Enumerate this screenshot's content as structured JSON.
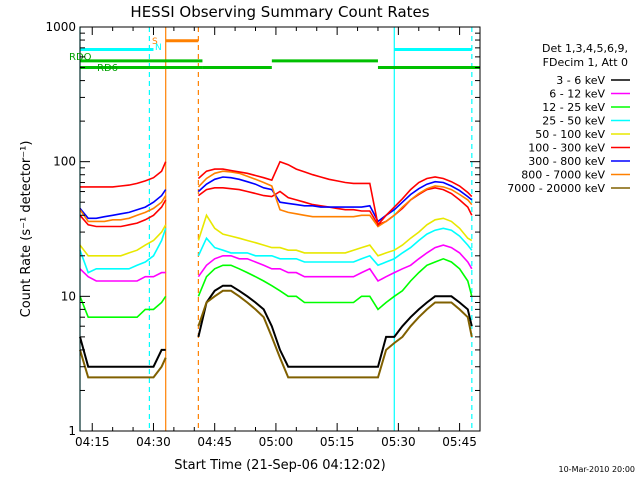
{
  "chart_data": {
    "type": "line",
    "title": "HESSI Observing Summary Count Rates",
    "xlabel": "Start Time (21-Sep-06 04:12:02)",
    "ylabel": "Count Rate (s⁻¹ detector⁻¹)",
    "y_scale": "log",
    "ylim": [
      1,
      1000
    ],
    "xlim": [
      "04:12",
      "05:50"
    ],
    "x_ticks": [
      "04:15",
      "04:30",
      "04:45",
      "05:00",
      "05:15",
      "05:30",
      "05:45"
    ],
    "y_ticks": [
      "1",
      "10",
      "100",
      "1000"
    ],
    "grid": false,
    "legend_position": "right",
    "legend_header": [
      "Det 1,3,4,5,6,9,",
      "FDecim 1, Att 0"
    ],
    "footer_date": "10-Mar-2010 20:00",
    "flag_labels": {
      "rd0": "RDO",
      "rd6": "RD6",
      "s": "S",
      "n": "N"
    },
    "flags": [
      {
        "label": "RDO",
        "color": "#00c000",
        "level": 560,
        "segments": [
          [
            "04:12",
            "04:42"
          ],
          [
            "04:59",
            "05:25"
          ]
        ]
      },
      {
        "label": "RD6",
        "color": "#00c000",
        "level": 500,
        "segments": [
          [
            "04:12",
            "04:42"
          ],
          [
            "04:42",
            "04:59"
          ],
          [
            "05:25",
            "05:50"
          ]
        ]
      },
      {
        "label": "",
        "color": "#00ffff",
        "level": 680,
        "segments": [
          [
            "04:12",
            "04:30"
          ],
          [
            "05:29",
            "05:48"
          ]
        ]
      },
      {
        "label": "S",
        "color": "#ff8000",
        "level": 790,
        "segments": [
          [
            "04:33",
            "04:41"
          ]
        ]
      }
    ],
    "vertical_lines": [
      {
        "time": "04:12",
        "color": "#00ffff",
        "style": "solid"
      },
      {
        "time": "04:29",
        "color": "#00ffff",
        "style": "dashed"
      },
      {
        "time": "04:33",
        "color": "#ff8000",
        "style": "solid"
      },
      {
        "time": "04:41",
        "color": "#ff8000",
        "style": "dashed"
      },
      {
        "time": "05:29",
        "color": "#00ffff",
        "style": "solid"
      },
      {
        "time": "05:48",
        "color": "#00ffff",
        "style": "dashed"
      }
    ],
    "times": [
      "04:12",
      "04:14",
      "04:16",
      "04:18",
      "04:20",
      "04:22",
      "04:24",
      "04:26",
      "04:28",
      "04:30",
      "04:32",
      "04:33",
      "04:41",
      "04:43",
      "04:45",
      "04:47",
      "04:49",
      "04:51",
      "04:53",
      "04:55",
      "04:57",
      "04:59",
      "05:01",
      "05:03",
      "05:05",
      "05:07",
      "05:09",
      "05:11",
      "05:13",
      "05:15",
      "05:17",
      "05:19",
      "05:21",
      "05:23",
      "05:25",
      "05:27",
      "05:29",
      "05:31",
      "05:33",
      "05:35",
      "05:37",
      "05:39",
      "05:41",
      "05:43",
      "05:45",
      "05:47",
      "05:48"
    ],
    "series": [
      {
        "name": "3 - 6 keV",
        "color": "#000000",
        "values": [
          5,
          3,
          3,
          3,
          3,
          3,
          3,
          3,
          3,
          3,
          4,
          4,
          5,
          9,
          11,
          12,
          12,
          11,
          10,
          9,
          8,
          6,
          4,
          3,
          3,
          3,
          3,
          3,
          3,
          3,
          3,
          3,
          3,
          3,
          3,
          5,
          5,
          6,
          7,
          8,
          9,
          10,
          10,
          10,
          9,
          8,
          6
        ]
      },
      {
        "name": "6 - 12 keV",
        "color": "#ff00ff",
        "values": [
          16,
          14,
          13,
          13,
          13,
          13,
          13,
          13,
          14,
          14,
          15,
          15,
          14,
          17,
          19,
          20,
          20,
          19,
          19,
          18,
          17,
          16,
          16,
          15,
          15,
          14,
          14,
          14,
          14,
          14,
          14,
          14,
          15,
          16,
          13,
          14,
          15,
          16,
          17,
          19,
          21,
          23,
          24,
          23,
          21,
          18,
          16
        ]
      },
      {
        "name": "12 - 25 keV",
        "color": "#00ff00",
        "values": [
          10,
          7,
          7,
          7,
          7,
          7,
          7,
          7,
          8,
          8,
          9,
          10,
          10,
          14,
          16,
          17,
          17,
          16,
          15,
          14,
          13,
          12,
          11,
          10,
          10,
          9,
          9,
          9,
          9,
          9,
          9,
          9,
          10,
          10,
          8,
          9,
          10,
          11,
          13,
          15,
          17,
          18,
          19,
          18,
          16,
          13,
          10
        ]
      },
      {
        "name": "25 - 50 keV",
        "color": "#00ffff",
        "values": [
          22,
          15,
          16,
          16,
          16,
          16,
          16,
          17,
          18,
          20,
          26,
          32,
          20,
          27,
          23,
          22,
          21,
          21,
          21,
          20,
          20,
          20,
          19,
          19,
          19,
          18,
          18,
          18,
          18,
          18,
          18,
          18,
          19,
          20,
          17,
          18,
          19,
          21,
          23,
          26,
          29,
          31,
          32,
          31,
          28,
          24,
          22
        ]
      },
      {
        "name": "50 - 100 keV",
        "color": "#e8e800",
        "values": [
          24,
          20,
          20,
          20,
          20,
          20,
          21,
          22,
          24,
          26,
          30,
          34,
          26,
          40,
          32,
          29,
          28,
          27,
          26,
          25,
          24,
          23,
          23,
          22,
          22,
          21,
          21,
          21,
          21,
          21,
          21,
          22,
          23,
          24,
          20,
          21,
          22,
          24,
          27,
          30,
          34,
          37,
          38,
          36,
          32,
          27,
          26
        ]
      },
      {
        "name": "100 - 300 keV",
        "color": "#ff0000",
        "values": [
          40,
          34,
          33,
          33,
          33,
          33,
          34,
          35,
          37,
          40,
          46,
          52,
          56,
          62,
          64,
          64,
          63,
          62,
          60,
          58,
          56,
          55,
          60,
          54,
          52,
          50,
          48,
          47,
          46,
          45,
          44,
          44,
          43,
          43,
          34,
          36,
          40,
          45,
          52,
          57,
          62,
          64,
          62,
          58,
          52,
          46,
          40
        ]
      },
      {
        "name": "300 - 800 keV",
        "color": "#0000ff",
        "values": [
          45,
          38,
          38,
          39,
          40,
          41,
          42,
          44,
          46,
          50,
          56,
          62,
          60,
          68,
          74,
          77,
          76,
          74,
          71,
          68,
          64,
          62,
          50,
          49,
          48,
          47,
          47,
          46,
          46,
          46,
          46,
          46,
          46,
          47,
          36,
          40,
          44,
          50,
          57,
          63,
          68,
          71,
          70,
          66,
          61,
          55,
          52
        ]
      },
      {
        "name": "800 - 7000 keV",
        "color": "#ff8000",
        "values": [
          44,
          36,
          36,
          36,
          37,
          37,
          38,
          40,
          42,
          45,
          50,
          56,
          65,
          75,
          82,
          85,
          84,
          82,
          78,
          74,
          70,
          66,
          44,
          42,
          41,
          40,
          39,
          39,
          39,
          39,
          39,
          39,
          40,
          40,
          33,
          36,
          40,
          46,
          52,
          58,
          63,
          66,
          65,
          62,
          57,
          52,
          48
        ]
      },
      {
        "name": "7000 - 20000 keV",
        "color": "#806000",
        "values": [
          4,
          2.5,
          2.5,
          2.5,
          2.5,
          2.5,
          2.5,
          2.5,
          2.5,
          2.5,
          3,
          3.5,
          6,
          9,
          10,
          11,
          11,
          10,
          9,
          8,
          7,
          5,
          3.5,
          2.5,
          2.5,
          2.5,
          2.5,
          2.5,
          2.5,
          2.5,
          2.5,
          2.5,
          2.5,
          2.5,
          2.5,
          4,
          4.5,
          5,
          6,
          7,
          8,
          9,
          9,
          9,
          8,
          7,
          5
        ]
      },
      {
        "name": "",
        "color": "#ff0000",
        "values": [
          65,
          65,
          65,
          65,
          65,
          66,
          67,
          69,
          72,
          76,
          85,
          100,
          75,
          85,
          88,
          88,
          86,
          84,
          82,
          79,
          76,
          73,
          100,
          95,
          88,
          84,
          80,
          77,
          74,
          72,
          70,
          69,
          69,
          69,
          34,
          40,
          46,
          53,
          62,
          70,
          75,
          77,
          75,
          71,
          66,
          59,
          55
        ]
      }
    ]
  }
}
